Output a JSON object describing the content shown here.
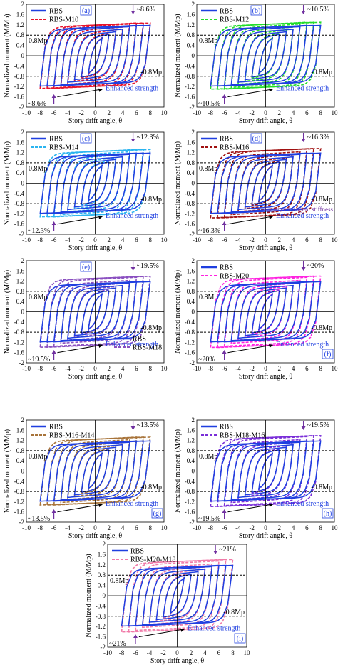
{
  "figure": {
    "ylabel": "Normalized moment (M/Mp)",
    "xlabel": "Story drift angle, θ",
    "x_ticks": [
      "-10",
      "-8",
      "-6",
      "-4",
      "-2",
      "0",
      "2",
      "4",
      "6",
      "8",
      "10"
    ],
    "y_ticks": [
      "2",
      "1.6",
      "1.2",
      "0.8",
      "0.4",
      "0",
      "-0.4",
      "-0.8",
      "-1.2",
      "-1.6",
      "-2"
    ],
    "ref_pos": "0.8Mp",
    "ref_neg": "-0.8Mp",
    "enhanced_strength": "Enhanced strength",
    "enhanced_tangent": "Enhanced tangent stiffness"
  },
  "colors": {
    "rbs": "#1f3fe0",
    "axis": "#000000",
    "annotation": "#7030a0",
    "text_blue": "#1f3fe0"
  },
  "chart_data": [
    {
      "type": "line",
      "panel_label": "(a)",
      "xlim": [
        -10,
        10
      ],
      "ylim": [
        -2,
        2
      ],
      "grid": false,
      "series": [
        {
          "name": "RBS",
          "color": "#1f3fe0",
          "peak_amp": 1.1
        },
        {
          "name": "RBS-M10",
          "color": "#e8122a",
          "peak_amp": 1.19
        }
      ],
      "annotations": [
        "~8.6%",
        "~8.6%",
        "0.8Mp",
        "-0.8Mp",
        "Enhanced strength"
      ]
    },
    {
      "type": "line",
      "panel_label": "(b)",
      "xlim": [
        -10,
        10
      ],
      "ylim": [
        -2,
        2
      ],
      "grid": false,
      "series": [
        {
          "name": "RBS",
          "color": "#1f3fe0",
          "peak_amp": 1.1
        },
        {
          "name": "RBS-M12",
          "color": "#22dd2a",
          "peak_amp": 1.22
        }
      ],
      "annotations": [
        "~10.5%",
        "~10.5%",
        "0.8Mp",
        "-0.8Mp",
        "Enhanced strength"
      ]
    },
    {
      "type": "line",
      "panel_label": "(c)",
      "xlim": [
        -10,
        10
      ],
      "ylim": [
        -2,
        2
      ],
      "grid": false,
      "series": [
        {
          "name": "RBS",
          "color": "#1f3fe0",
          "peak_amp": 1.1
        },
        {
          "name": "RBS-M14",
          "color": "#2ab4f0",
          "peak_amp": 1.24
        }
      ],
      "annotations": [
        "~12.3%",
        "~12.3%",
        "0.8Mp",
        "-0.8Mp",
        "Enhanced strength"
      ]
    },
    {
      "type": "line",
      "panel_label": "(d)",
      "xlim": [
        -10,
        10
      ],
      "ylim": [
        -2,
        2
      ],
      "grid": false,
      "series": [
        {
          "name": "RBS",
          "color": "#1f3fe0",
          "peak_amp": 1.1
        },
        {
          "name": "RBS-M16",
          "color": "#a01010",
          "peak_amp": 1.28
        }
      ],
      "annotations": [
        "~16.3%",
        "~16.3%",
        "0.8Mp",
        "-0.8Mp",
        "Enhanced strength",
        "Enhanced tangent stiffness"
      ]
    },
    {
      "type": "line",
      "panel_label": "(e)",
      "xlim": [
        -10,
        10
      ],
      "ylim": [
        -2,
        2
      ],
      "grid": false,
      "series": [
        {
          "name": "RBS",
          "color": "#1f3fe0",
          "peak_amp": 1.1
        },
        {
          "name": "RBS-M18",
          "color": "#8a4fc0",
          "peak_amp": 1.31
        }
      ],
      "annotations": [
        "~19.5%",
        "~19.5%",
        "0.8Mp",
        "-0.8Mp",
        "Enhanced strength"
      ]
    },
    {
      "type": "line",
      "panel_label": "(f)",
      "xlim": [
        -10,
        10
      ],
      "ylim": [
        -2,
        2
      ],
      "grid": false,
      "series": [
        {
          "name": "RBS",
          "color": "#1f3fe0",
          "peak_amp": 1.1
        },
        {
          "name": "RBS-M20",
          "color": "#ff22e0",
          "peak_amp": 1.32
        }
      ],
      "annotations": [
        "~20%",
        "~20%",
        "0.8Mp",
        "-0.8Mp",
        "Enhanced strength"
      ]
    },
    {
      "type": "line",
      "panel_label": "(g)",
      "xlim": [
        -10,
        10
      ],
      "ylim": [
        -2,
        2
      ],
      "grid": false,
      "series": [
        {
          "name": "RBS",
          "color": "#1f3fe0",
          "peak_amp": 1.1
        },
        {
          "name": "RBS-M16-M14",
          "color": "#a8743a",
          "peak_amp": 1.25
        }
      ],
      "annotations": [
        "~13.5%",
        "~13.5%",
        "0.8Mp",
        "-0.8Mp",
        "Enhanced strength"
      ]
    },
    {
      "type": "line",
      "panel_label": "(h)",
      "xlim": [
        -10,
        10
      ],
      "ylim": [
        -2,
        2
      ],
      "grid": false,
      "series": [
        {
          "name": "RBS",
          "color": "#1f3fe0",
          "peak_amp": 1.1
        },
        {
          "name": "RBS-M18-M16",
          "color": "#7a2ed8",
          "peak_amp": 1.31
        }
      ],
      "annotations": [
        "~19.5%",
        "~19.5%",
        "0.8Mp",
        "-0.8Mp",
        "Enhanced strength"
      ]
    },
    {
      "type": "line",
      "panel_label": "(i)",
      "xlim": [
        -10,
        10
      ],
      "ylim": [
        -2,
        2
      ],
      "grid": false,
      "series": [
        {
          "name": "RBS",
          "color": "#1f3fe0",
          "peak_amp": 1.1
        },
        {
          "name": "RBS-M20-M18",
          "color": "#f07aa8",
          "peak_amp": 1.33
        }
      ],
      "annotations": [
        "~21%",
        "~21%",
        "0.8Mp",
        "-0.8Mp",
        "Enhanced strength"
      ]
    }
  ]
}
